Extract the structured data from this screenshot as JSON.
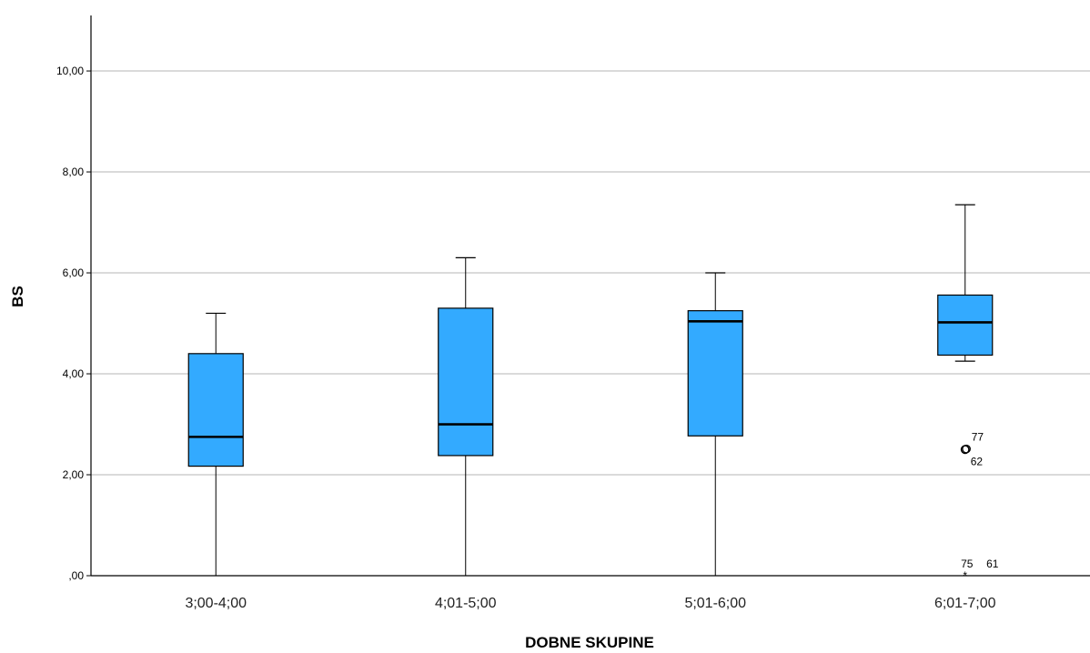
{
  "chart_data": {
    "type": "boxplot",
    "xlabel": "DOBNE SKUPINE",
    "ylabel": "BS",
    "ylim": [
      0,
      11.1
    ],
    "yticks": [
      {
        "value": 0,
        "label": ",00"
      },
      {
        "value": 2,
        "label": "2,00"
      },
      {
        "value": 4,
        "label": "4,00"
      },
      {
        "value": 6,
        "label": "6,00"
      },
      {
        "value": 8,
        "label": "8,00"
      },
      {
        "value": 10,
        "label": "10,00"
      }
    ],
    "grid": true,
    "box_color": "#33aaff",
    "categories": [
      "3;00-4;00",
      "4;01-5;00",
      "5;01-6;00",
      "6;01-7;00"
    ],
    "boxes": [
      {
        "category": "3;00-4;00",
        "min": 0,
        "q1": 2.17,
        "median": 2.75,
        "q3": 4.4,
        "max": 5.2,
        "outliers": []
      },
      {
        "category": "4;01-5;00",
        "min": 0,
        "q1": 2.38,
        "median": 3.0,
        "q3": 5.3,
        "max": 6.3,
        "outliers": []
      },
      {
        "category": "5;01-6;00",
        "min": 0,
        "q1": 2.77,
        "median": 5.04,
        "q3": 5.25,
        "max": 6.0,
        "outliers": []
      },
      {
        "category": "6;01-7;00",
        "min": 4.25,
        "q1": 4.37,
        "median": 5.02,
        "q3": 5.56,
        "max": 7.35,
        "outliers": [
          {
            "value": 2.5,
            "kind": "outlier",
            "labels": [
              "77",
              "62"
            ]
          },
          {
            "value": 0,
            "kind": "extreme",
            "labels": [
              "75",
              "61"
            ]
          }
        ]
      }
    ]
  }
}
